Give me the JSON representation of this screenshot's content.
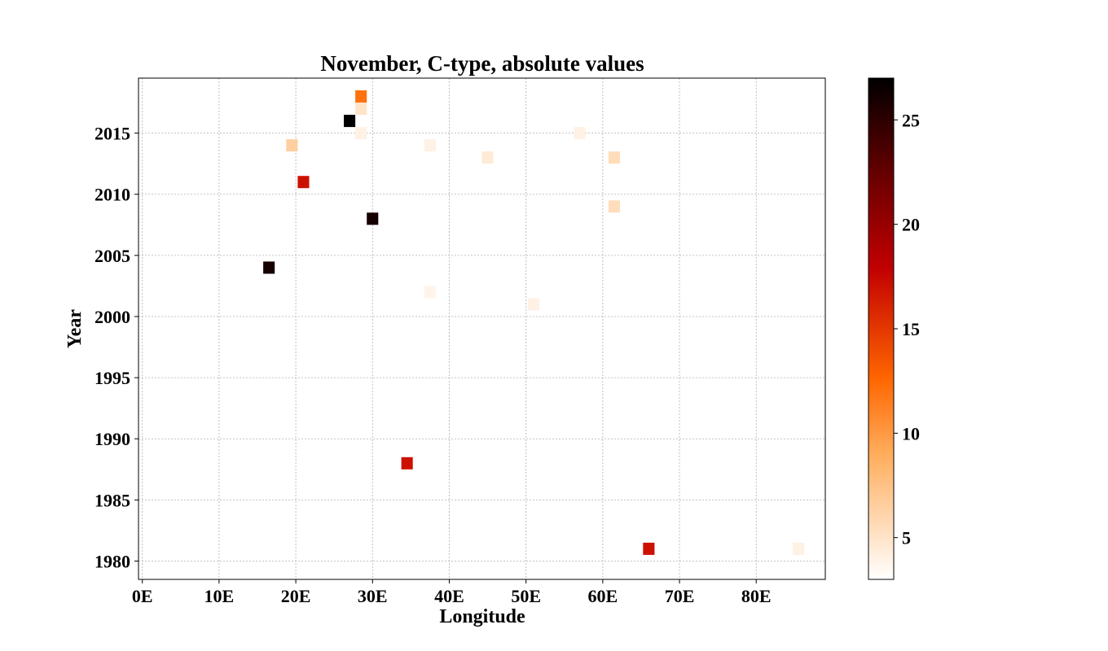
{
  "chart_data": {
    "type": "heatmap",
    "title": "November, C-type, absolute values",
    "xlabel": "Longitude",
    "ylabel": "Year",
    "xlim": [
      -0.5,
      89
    ],
    "ylim": [
      1978.5,
      2019.5
    ],
    "xticks": [
      0,
      10,
      20,
      30,
      40,
      50,
      60,
      70,
      80
    ],
    "xtick_labels": [
      "0E",
      "10E",
      "20E",
      "30E",
      "40E",
      "50E",
      "60E",
      "70E",
      "80E"
    ],
    "yticks": [
      1980,
      1985,
      1990,
      1995,
      2000,
      2005,
      2010,
      2015
    ],
    "ytick_labels": [
      "1980",
      "1985",
      "1990",
      "1995",
      "2000",
      "2005",
      "2010",
      "2015"
    ],
    "grid": true,
    "colormap": "gist_heat_r",
    "colorbar": {
      "range": [
        3,
        27
      ],
      "ticks": [
        5,
        10,
        15,
        20,
        25
      ],
      "tick_labels": [
        "5",
        "10",
        "15",
        "20",
        "25"
      ]
    },
    "points": [
      {
        "lon": 28.5,
        "year": 2018,
        "value": 12
      },
      {
        "lon": 28.5,
        "year": 2017,
        "value": 5
      },
      {
        "lon": 27,
        "year": 2016,
        "value": 27
      },
      {
        "lon": 28.5,
        "year": 2015,
        "value": 4
      },
      {
        "lon": 57,
        "year": 2015,
        "value": 4
      },
      {
        "lon": 19.5,
        "year": 2014,
        "value": 6.5
      },
      {
        "lon": 37.5,
        "year": 2014,
        "value": 4
      },
      {
        "lon": 45,
        "year": 2013,
        "value": 4.5
      },
      {
        "lon": 61.5,
        "year": 2013,
        "value": 5.5
      },
      {
        "lon": 21,
        "year": 2011,
        "value": 17
      },
      {
        "lon": 61.5,
        "year": 2009,
        "value": 5.5
      },
      {
        "lon": 30,
        "year": 2008,
        "value": 26
      },
      {
        "lon": 16.5,
        "year": 2004,
        "value": 26
      },
      {
        "lon": 37.5,
        "year": 2002,
        "value": 3.8
      },
      {
        "lon": 51,
        "year": 2001,
        "value": 4
      },
      {
        "lon": 34.5,
        "year": 1988,
        "value": 17
      },
      {
        "lon": 66,
        "year": 1981,
        "value": 17
      },
      {
        "lon": 85.5,
        "year": 1981,
        "value": 4
      }
    ]
  }
}
